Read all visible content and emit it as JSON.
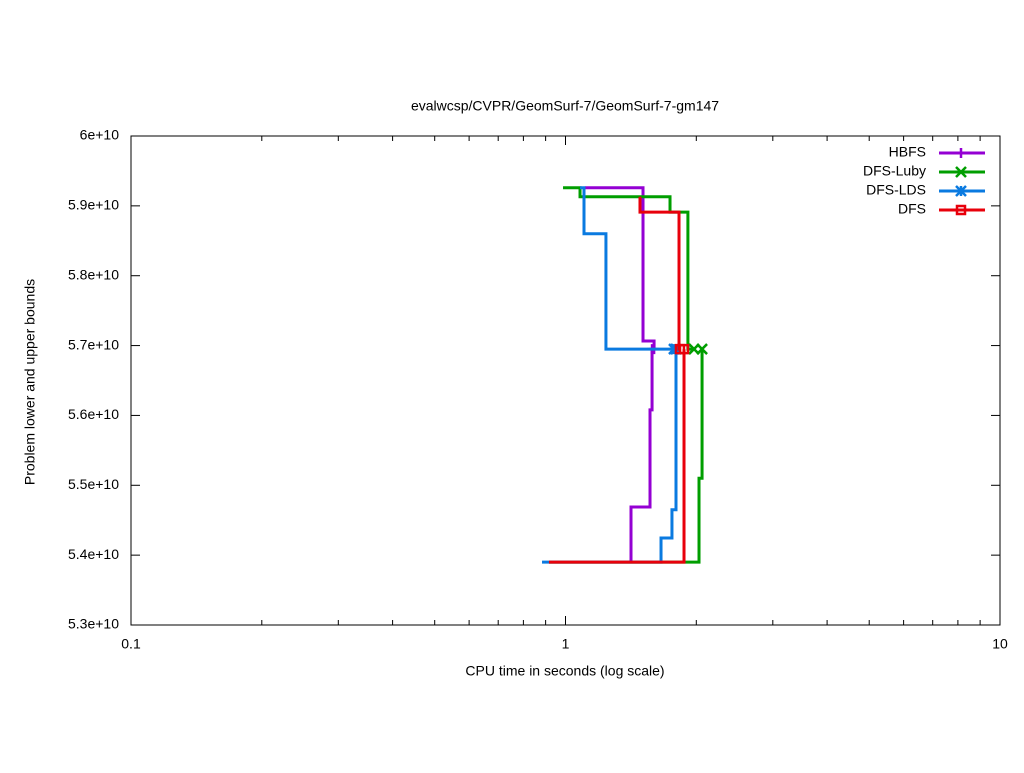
{
  "chart_data": {
    "type": "line",
    "title": "evalwcsp/CVPR/GeomSurf-7/GeomSurf-7-gm147",
    "x_label": "CPU time in seconds (log scale)",
    "y_label": "Problem lower and upper bounds",
    "xlog": true,
    "xlim": [
      0.1,
      10
    ],
    "xticks": [
      0.1,
      1,
      10
    ],
    "ylim": [
      53000000000,
      60000000000
    ],
    "yticks": [
      {
        "value": 53000000000,
        "label": "5.3e+10"
      },
      {
        "value": 54000000000,
        "label": "5.4e+10"
      },
      {
        "value": 55000000000,
        "label": "5.5e+10"
      },
      {
        "value": 56000000000,
        "label": "5.6e+10"
      },
      {
        "value": 57000000000,
        "label": "5.7e+10"
      },
      {
        "value": 58000000000,
        "label": "5.8e+10"
      },
      {
        "value": 59000000000,
        "label": "5.9e+10"
      },
      {
        "value": 60000000000,
        "label": "6e+10"
      }
    ],
    "legend": "top-right",
    "series": [
      {
        "name": "HBFS",
        "color": "#9400d3",
        "marker": "plus",
        "x": [
          1.109,
          1.508,
          1.508,
          1.599,
          1.599,
          null,
          1.415,
          1.415,
          1.565,
          1.565,
          1.582,
          1.582
        ],
        "values": [
          59260000000,
          59260000000,
          57065000000,
          57065000000,
          56950000000,
          null,
          53900000000,
          54690000000,
          54690000000,
          56080000000,
          56080000000,
          56950000000
        ]
      },
      {
        "name": "DFS-Luby",
        "color": "#009e00",
        "marker": "x",
        "x": [
          0.987,
          1.08,
          1.08,
          1.74,
          1.74,
          1.913,
          1.913,
          1.976,
          null,
          0.916,
          2.029,
          2.029,
          2.062,
          2.062
        ],
        "values": [
          59260000000,
          59260000000,
          59130000000,
          59130000000,
          58910000000,
          58910000000,
          56950000000,
          56950000000,
          null,
          53900000000,
          53900000000,
          55100000000,
          55100000000,
          56950000000
        ]
      },
      {
        "name": "DFS-LDS",
        "color": "#0a7ae0",
        "marker": "star",
        "x": [
          1.08,
          1.103,
          1.103,
          1.239,
          1.239,
          1.777,
          null,
          0.883,
          1.659,
          1.659,
          1.758,
          1.758,
          1.796,
          1.796
        ],
        "values": [
          59260000000,
          59260000000,
          58600000000,
          58600000000,
          56950000000,
          56950000000,
          null,
          53900000000,
          53900000000,
          54245000000,
          54245000000,
          54650000000,
          54650000000,
          56950000000
        ]
      },
      {
        "name": "DFS",
        "color": "#e8000b",
        "marker": "square",
        "x": [
          1.484,
          1.484,
          1.825,
          1.825,
          1.834,
          null,
          0.916,
          1.874,
          1.874
        ],
        "values": [
          59130000000,
          58910000000,
          58910000000,
          56950000000,
          56950000000,
          null,
          53900000000,
          53900000000,
          56950000000
        ]
      }
    ]
  }
}
